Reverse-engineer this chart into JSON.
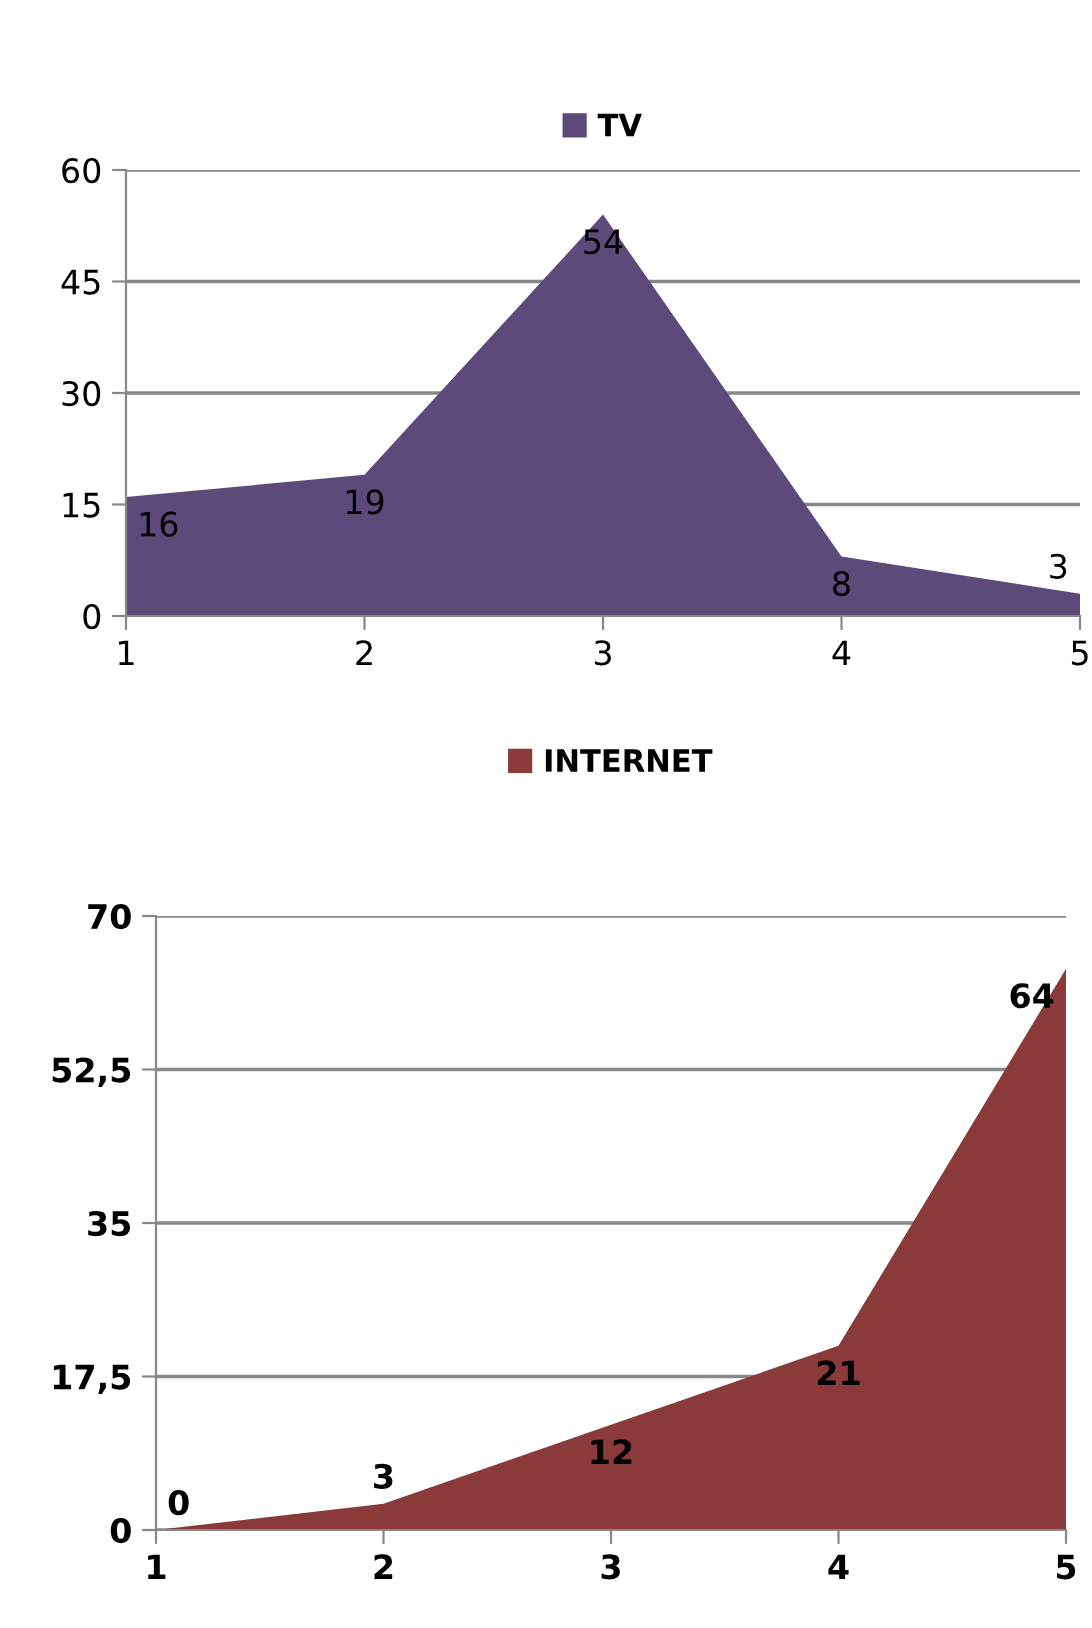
{
  "chart_data": [
    {
      "type": "area",
      "categories": [
        "1",
        "2",
        "3",
        "4",
        "5"
      ],
      "series": [
        {
          "name": "TV",
          "color": "#5b4a7a",
          "values": [
            16,
            19,
            54,
            8,
            3
          ]
        }
      ],
      "ylim": [
        0,
        60
      ],
      "yticks": [
        0,
        15,
        30,
        45,
        60
      ],
      "grid": "y",
      "legend": "top",
      "data_labels": true
    },
    {
      "type": "area",
      "categories": [
        "1",
        "2",
        "3",
        "4",
        "5"
      ],
      "series": [
        {
          "name": "INTERNET",
          "color": "#8b3a3a",
          "values": [
            0,
            3,
            12,
            21,
            64
          ]
        }
      ],
      "ylim": [
        0,
        70
      ],
      "yticks": [
        0,
        {
          "value": 17.5,
          "label": "17,5"
        },
        35,
        {
          "value": 52.5,
          "label": "52,5"
        },
        70
      ],
      "grid": "y",
      "legend": "top",
      "data_labels": true
    }
  ]
}
